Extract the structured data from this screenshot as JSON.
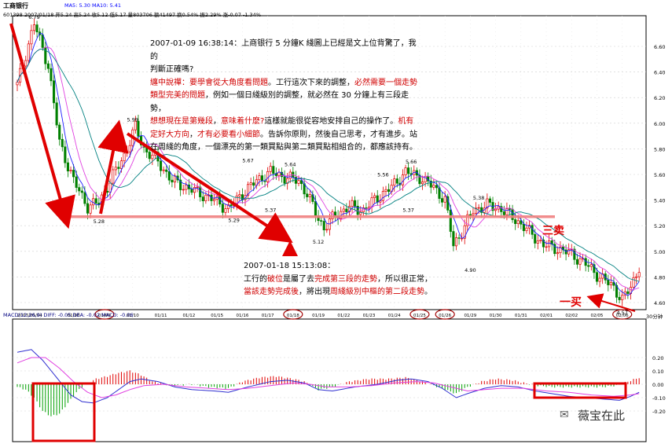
{
  "header": {
    "name": "工商银行",
    "ma_line": "MA5: 5.30  MA10: 5.41",
    "info_line": "601398 2007/01/18 开5.24 高5.24 收5.12 低5.17 量803706 额41497 换0.54% 振2.29% 涨-0.07 -1.34%",
    "macd_line": "MACD(12,26,9)  DIFF: -0.05  DEA: -0.02  MACD: -0.06",
    "period": "30分钟"
  },
  "note_top": {
    "time": "2007-01-09 16:38:14：上商银行 5 分鐘K 綫圖上已經是文上位背驚了，我的",
    "lines": [
      {
        "parts": [
          {
            "t": "判斷正確嗎?",
            "red": false
          }
        ]
      },
      {
        "parts": [
          {
            "t": "纏中說禪：要學會從大角度看問題",
            "red": true
          },
          {
            "t": "。工行這次下來的調整，",
            "red": false
          },
          {
            "t": "必然需要一個走勢",
            "red": true
          }
        ]
      },
      {
        "parts": [
          {
            "t": "類型完美的問題",
            "red": true
          },
          {
            "t": "，例如一個日綫級別的調整，就必然在 30 分鐘上有三段走勢，",
            "red": false
          }
        ]
      },
      {
        "parts": [
          {
            "t": "想想現在是第幾段",
            "red": true
          },
          {
            "t": "，",
            "red": false
          },
          {
            "t": "意味着什麽?",
            "red": true
          },
          {
            "t": "這樣就能很從容地安排自己的操作了。",
            "red": false
          },
          {
            "t": "机有",
            "red": true
          }
        ]
      },
      {
        "parts": [
          {
            "t": "定好大方向",
            "red": true
          },
          {
            "t": "，",
            "red": false
          },
          {
            "t": "才有必要看小細節",
            "red": true
          },
          {
            "t": "。告訴你原則，然後自己思考，才有進步。站",
            "red": false
          }
        ]
      },
      {
        "parts": [
          {
            "t": "在周綫的角度，一個漂亮的第一類買點與第二類買點相組合的，都應該持有。",
            "red": false
          }
        ]
      }
    ]
  },
  "note_bottom": {
    "time": "2007-01-18 15:13:08：",
    "lines": [
      {
        "parts": [
          {
            "t": "工行的",
            "red": false
          },
          {
            "t": "破位",
            "red": true
          },
          {
            "t": "是屬了去",
            "red": false
          },
          {
            "t": "完成第三段的走勢",
            "red": true
          },
          {
            "t": "，所以很正常，",
            "red": false
          }
        ]
      },
      {
        "parts": [
          {
            "t": "當該走勢完成後",
            "red": true
          },
          {
            "t": "，將出現",
            "red": false
          },
          {
            "t": "周綫級別中樞的第二段走勢",
            "red": true
          },
          {
            "t": "。",
            "red": false
          }
        ]
      }
    ]
  },
  "labels": {
    "three_sell": "三卖",
    "one_buy": "一买",
    "watermark": "薇宝在此"
  },
  "chart_data": {
    "type": "candlestick",
    "price_axis_ticks": [
      "6.60",
      "6.40",
      "6.20",
      "6.00",
      "5.80",
      "5.60",
      "5.40",
      "5.20",
      "5.00",
      "4.80",
      "4.60"
    ],
    "macd_axis_ticks": [
      "0.20",
      "0.10",
      "0.00",
      "-0.10",
      "-0.20"
    ],
    "date_labels": [
      "2007/01/04",
      "01/08",
      "01/09",
      "01/10",
      "01/11",
      "01/12",
      "01/15",
      "01/16",
      "01/17",
      "01/18",
      "01/19",
      "01/22",
      "01/23",
      "01/24",
      "01/25",
      "01/26",
      "01/29",
      "01/30",
      "01/31",
      "02/01",
      "02/02",
      "02/05",
      "02/06"
    ],
    "circled_dates": [
      "01/09",
      "01/18",
      "01/25",
      "01/26",
      "02/06"
    ],
    "price_annotations": [
      {
        "text": "6.79",
        "price": 6.79
      },
      {
        "text": "5.99",
        "price": 5.99
      },
      {
        "text": "5.67",
        "price": 5.67
      },
      {
        "text": "5.64",
        "price": 5.64
      },
      {
        "text": "5.56",
        "price": 5.56
      },
      {
        "text": "5.66",
        "price": 5.66
      },
      {
        "text": "5.38",
        "price": 5.38
      },
      {
        "text": "5.28",
        "price": 5.28
      },
      {
        "text": "5.29",
        "price": 5.29
      },
      {
        "text": "5.37",
        "price": 5.37
      },
      {
        "text": "5.12",
        "price": 5.12
      },
      {
        "text": "5.37",
        "price": 5.37
      },
      {
        "text": "4.90",
        "price": 4.9
      },
      {
        "text": "4.57",
        "price": 4.57
      }
    ],
    "zhongshu_level": 5.27,
    "anchors": [
      [
        0,
        6.3
      ],
      [
        6,
        6.78
      ],
      [
        11,
        6.45
      ],
      [
        15,
        5.85
      ],
      [
        20,
        5.55
      ],
      [
        25,
        5.35
      ],
      [
        29,
        5.38
      ],
      [
        33,
        5.55
      ],
      [
        38,
        5.75
      ],
      [
        42,
        5.97
      ],
      [
        45,
        5.8
      ],
      [
        50,
        5.7
      ],
      [
        55,
        5.55
      ],
      [
        60,
        5.5
      ],
      [
        65,
        5.45
      ],
      [
        70,
        5.4
      ],
      [
        75,
        5.33
      ],
      [
        80,
        5.45
      ],
      [
        85,
        5.55
      ],
      [
        90,
        5.62
      ],
      [
        95,
        5.58
      ],
      [
        100,
        5.55
      ],
      [
        103,
        5.45
      ],
      [
        106,
        5.3
      ],
      [
        109,
        5.18
      ],
      [
        113,
        5.28
      ],
      [
        118,
        5.35
      ],
      [
        123,
        5.32
      ],
      [
        128,
        5.42
      ],
      [
        133,
        5.5
      ],
      [
        138,
        5.62
      ],
      [
        143,
        5.58
      ],
      [
        148,
        5.5
      ],
      [
        152,
        5.4
      ],
      [
        155,
        5.05
      ],
      [
        158,
        5.15
      ],
      [
        162,
        5.32
      ],
      [
        167,
        5.36
      ],
      [
        172,
        5.33
      ],
      [
        177,
        5.25
      ],
      [
        182,
        5.15
      ],
      [
        187,
        5.05
      ],
      [
        192,
        5.02
      ],
      [
        197,
        4.98
      ],
      [
        202,
        4.9
      ],
      [
        207,
        4.8
      ],
      [
        212,
        4.72
      ],
      [
        215,
        4.62
      ],
      [
        218,
        4.72
      ],
      [
        221,
        4.88
      ]
    ],
    "macd_hist_anchors": [
      [
        0,
        -0.02
      ],
      [
        3,
        -0.04
      ],
      [
        6,
        -0.1
      ],
      [
        9,
        -0.2
      ],
      [
        12,
        -0.24
      ],
      [
        15,
        -0.22
      ],
      [
        18,
        -0.14
      ],
      [
        21,
        -0.06
      ],
      [
        24,
        0.0
      ],
      [
        28,
        0.04
      ],
      [
        32,
        0.06
      ],
      [
        35,
        0.08
      ],
      [
        40,
        0.1
      ],
      [
        44,
        0.07
      ],
      [
        48,
        0.02
      ],
      [
        55,
        -0.01
      ],
      [
        62,
        0.0
      ],
      [
        68,
        -0.02
      ],
      [
        75,
        -0.03
      ],
      [
        80,
        0.02
      ],
      [
        86,
        0.05
      ],
      [
        92,
        0.06
      ],
      [
        98,
        0.04
      ],
      [
        102,
        0.02
      ],
      [
        107,
        -0.04
      ],
      [
        112,
        -0.02
      ],
      [
        118,
        0.02
      ],
      [
        125,
        0.04
      ],
      [
        132,
        0.04
      ],
      [
        138,
        0.05
      ],
      [
        142,
        0.03
      ],
      [
        147,
        0.0
      ],
      [
        152,
        -0.04
      ],
      [
        156,
        -0.07
      ],
      [
        160,
        -0.02
      ],
      [
        165,
        0.02
      ],
      [
        170,
        0.04
      ],
      [
        176,
        0.03
      ],
      [
        180,
        0.01
      ],
      [
        185,
        -0.01
      ],
      [
        190,
        -0.02
      ],
      [
        196,
        -0.02
      ],
      [
        202,
        -0.02
      ],
      [
        208,
        -0.02
      ],
      [
        213,
        -0.01
      ],
      [
        217,
        0.02
      ],
      [
        221,
        0.05
      ]
    ],
    "diff_anchors": [
      [
        0,
        0.24
      ],
      [
        5,
        0.26
      ],
      [
        9,
        0.18
      ],
      [
        14,
        0.05
      ],
      [
        19,
        -0.08
      ],
      [
        23,
        -0.13
      ],
      [
        27,
        -0.14
      ],
      [
        32,
        -0.1
      ],
      [
        36,
        -0.04
      ],
      [
        40,
        0.02
      ],
      [
        44,
        0.04
      ],
      [
        50,
        0.02
      ],
      [
        56,
        -0.02
      ],
      [
        62,
        -0.04
      ],
      [
        70,
        -0.05
      ],
      [
        75,
        -0.06
      ],
      [
        82,
        -0.02
      ],
      [
        90,
        0.02
      ],
      [
        96,
        0.03
      ],
      [
        102,
        0.01
      ],
      [
        107,
        -0.04
      ],
      [
        112,
        -0.05
      ],
      [
        120,
        -0.02
      ],
      [
        128,
        0.0
      ],
      [
        135,
        0.03
      ],
      [
        140,
        0.04
      ],
      [
        146,
        0.02
      ],
      [
        151,
        -0.03
      ],
      [
        156,
        -0.1
      ],
      [
        160,
        -0.07
      ],
      [
        166,
        -0.03
      ],
      [
        172,
        -0.01
      ],
      [
        178,
        -0.02
      ],
      [
        184,
        -0.05
      ],
      [
        190,
        -0.07
      ],
      [
        196,
        -0.09
      ],
      [
        202,
        -0.1
      ],
      [
        208,
        -0.11
      ],
      [
        214,
        -0.12
      ],
      [
        218,
        -0.09
      ],
      [
        221,
        -0.06
      ]
    ],
    "dea_anchors": [
      [
        0,
        0.16
      ],
      [
        5,
        0.2
      ],
      [
        10,
        0.2
      ],
      [
        15,
        0.12
      ],
      [
        20,
        0.02
      ],
      [
        25,
        -0.06
      ],
      [
        30,
        -0.1
      ],
      [
        35,
        -0.08
      ],
      [
        40,
        -0.04
      ],
      [
        45,
        -0.01
      ],
      [
        52,
        0.0
      ],
      [
        60,
        -0.02
      ],
      [
        68,
        -0.03
      ],
      [
        75,
        -0.04
      ],
      [
        82,
        -0.03
      ],
      [
        90,
        -0.01
      ],
      [
        98,
        0.01
      ],
      [
        104,
        0.0
      ],
      [
        110,
        -0.02
      ],
      [
        118,
        -0.02
      ],
      [
        126,
        -0.01
      ],
      [
        134,
        0.01
      ],
      [
        142,
        0.02
      ],
      [
        148,
        0.01
      ],
      [
        154,
        -0.02
      ],
      [
        160,
        -0.05
      ],
      [
        166,
        -0.04
      ],
      [
        172,
        -0.03
      ],
      [
        180,
        -0.03
      ],
      [
        188,
        -0.05
      ],
      [
        196,
        -0.06
      ],
      [
        204,
        -0.08
      ],
      [
        212,
        -0.09
      ],
      [
        218,
        -0.08
      ],
      [
        221,
        -0.07
      ]
    ]
  }
}
